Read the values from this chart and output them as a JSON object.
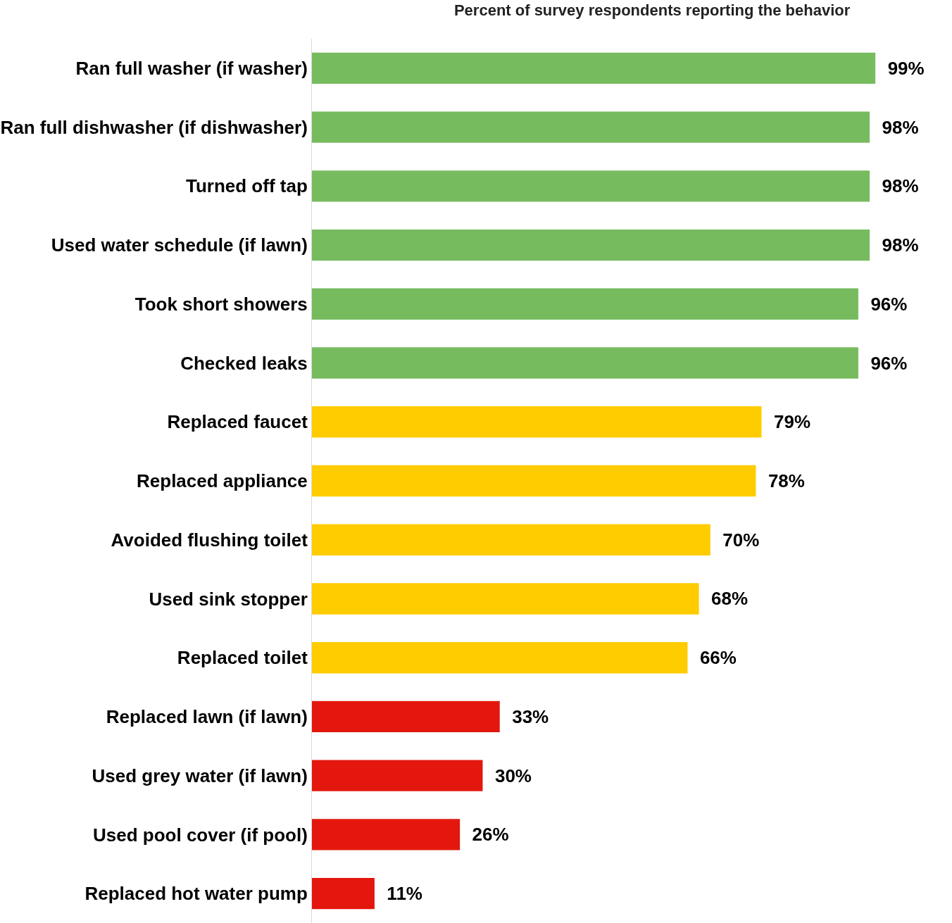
{
  "chart_data": {
    "type": "bar",
    "orientation": "horizontal",
    "title": "Percent of survey respondents reporting the behavior",
    "categories": [
      "Ran full washer (if washer)",
      "Ran full dishwasher (if dishwasher)",
      "Turned off tap",
      "Used water schedule (if lawn)",
      "Took short showers",
      "Checked leaks",
      "Replaced faucet",
      "Replaced appliance",
      "Avoided flushing toilet",
      "Used sink stopper",
      "Replaced toilet",
      "Replaced lawn (if lawn)",
      "Used grey water (if lawn)",
      "Used pool cover (if pool)",
      "Replaced hot water pump"
    ],
    "values": [
      99,
      98,
      98,
      98,
      96,
      96,
      79,
      78,
      70,
      68,
      66,
      33,
      30,
      26,
      11
    ],
    "value_labels": [
      "99%",
      "98%",
      "98%",
      "98%",
      "96%",
      "96%",
      "79%",
      "78%",
      "70%",
      "68%",
      "66%",
      "33%",
      "30%",
      "26%",
      "11%"
    ],
    "colors": [
      "#77bb5f",
      "#77bb5f",
      "#77bb5f",
      "#77bb5f",
      "#77bb5f",
      "#77bb5f",
      "#ffcc00",
      "#ffcc00",
      "#ffcc00",
      "#ffcc00",
      "#ffcc00",
      "#e3170d",
      "#e3170d",
      "#e3170d",
      "#e3170d"
    ],
    "legend": false
  }
}
